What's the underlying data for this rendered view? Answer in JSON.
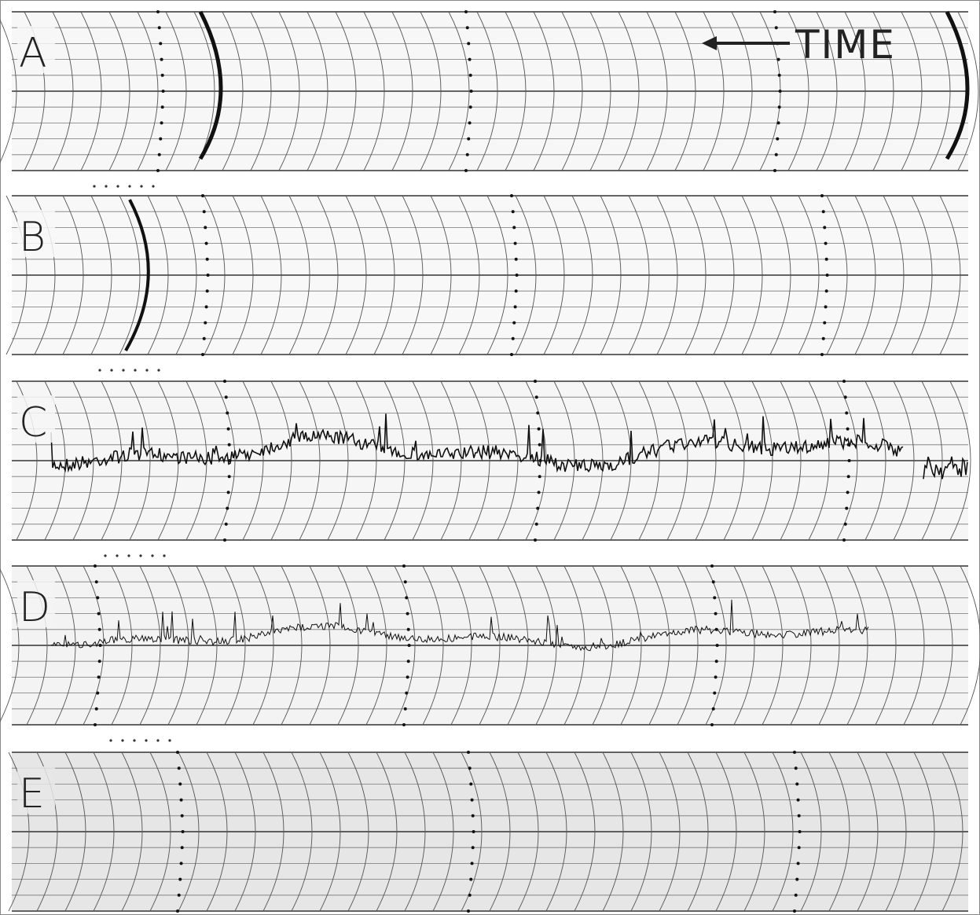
{
  "panels": [
    {
      "label": "A"
    },
    {
      "label": "B"
    },
    {
      "label": "C"
    },
    {
      "label": "D"
    },
    {
      "label": "E"
    }
  ],
  "time_label": "TIME"
}
